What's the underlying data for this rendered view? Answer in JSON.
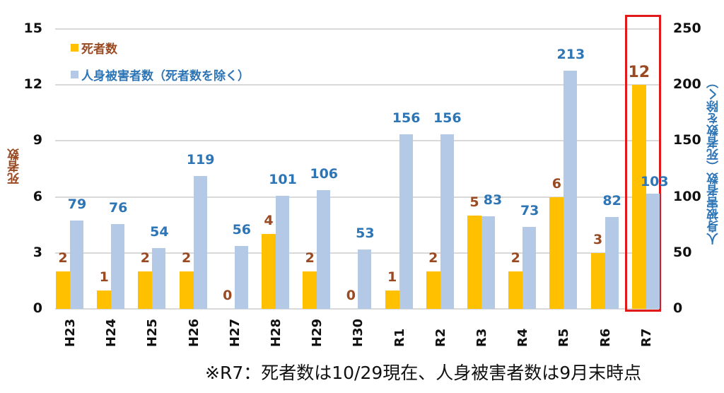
{
  "chart_data": {
    "type": "bar",
    "title": "",
    "categories": [
      "H23",
      "H24",
      "H25",
      "H26",
      "H27",
      "H28",
      "H29",
      "H30",
      "R1",
      "R2",
      "R3",
      "R4",
      "R5",
      "R6",
      "R7"
    ],
    "series": [
      {
        "name": "死者数",
        "axis": "left",
        "color": "#ffc000",
        "label_color": "#9a4a22",
        "values": [
          2,
          1,
          2,
          2,
          0,
          4,
          2,
          0,
          1,
          2,
          5,
          2,
          6,
          3,
          12
        ]
      },
      {
        "name": "人身被害者数（死者数を除く）",
        "axis": "right",
        "color": "#b4c9e6",
        "label_color": "#2e75b6",
        "values": [
          79,
          76,
          54,
          119,
          56,
          101,
          106,
          53,
          156,
          156,
          83,
          73,
          213,
          82,
          103
        ]
      }
    ],
    "ylabel": "死者数",
    "ylabel_right": "人身被害者数（死者数を除く）",
    "ylim": [
      0,
      15
    ],
    "ylim_right": [
      0,
      250
    ],
    "yticks": [
      "0",
      "3",
      "6",
      "9",
      "12",
      "15"
    ],
    "yticks_right": [
      "0",
      "50",
      "100",
      "150",
      "200",
      "250"
    ],
    "grid": true,
    "legend_position": "top-left",
    "highlight_category": "R7",
    "annotation": "※R7：死者数は10/29現在、人身被害者数は9月末時点"
  },
  "legend": [
    {
      "label": "死者数",
      "color": "#ffc000",
      "text_color": "#9a4a22"
    },
    {
      "label": "人身被害者数（死者数を除く）",
      "color": "#b4c9e6",
      "text_color": "#2e75b6"
    }
  ],
  "axes": {
    "left_title": "死者数",
    "right_title": "人身被害者数（死者数を除く）",
    "left_ticks": [
      "15",
      "12",
      "9",
      "6",
      "3",
      "0"
    ],
    "right_ticks": [
      "250",
      "200",
      "150",
      "100",
      "50",
      "0"
    ]
  },
  "note": "※R7：死者数は10/29現在、人身被害者数は9月末時点"
}
